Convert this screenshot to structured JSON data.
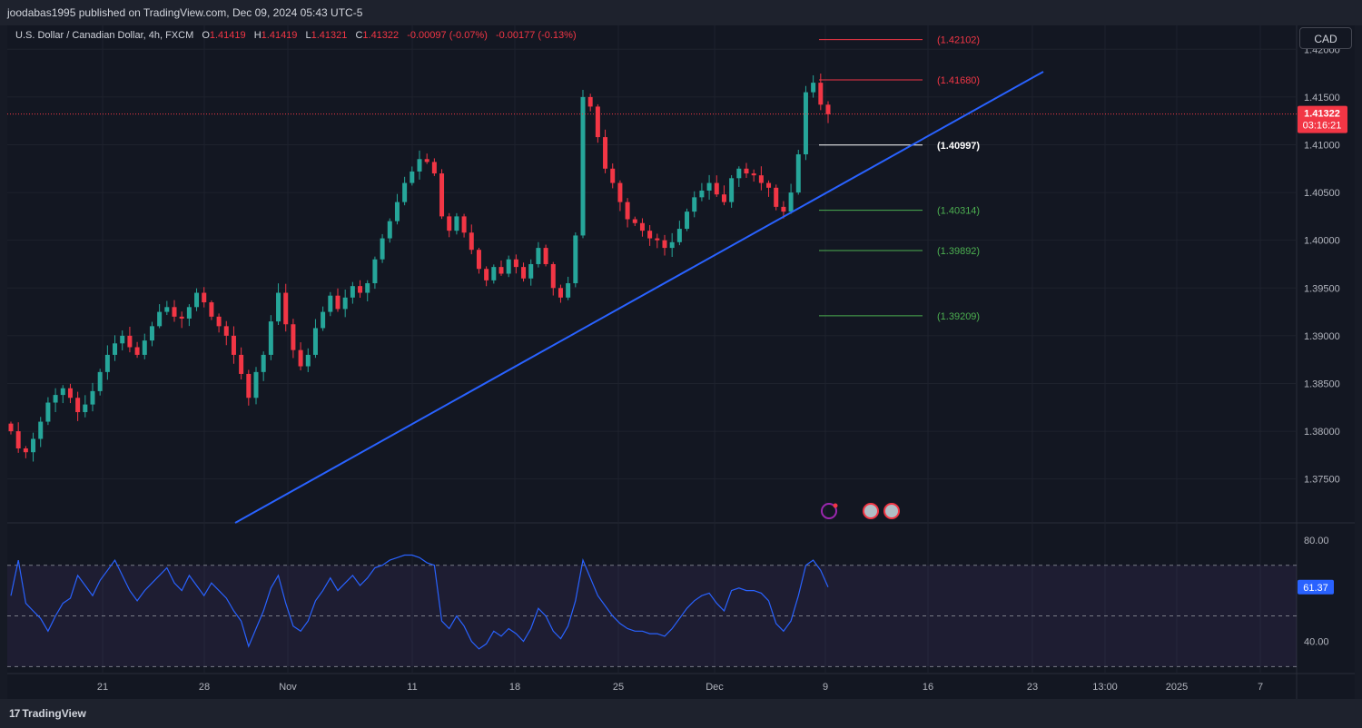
{
  "header": {
    "publisher_text": "joodabas1995 published on TradingView.com, Dec 09, 2024 05:43 UTC-5"
  },
  "legend": {
    "symbol": "U.S. Dollar / Canadian Dollar, 4h, FXCM",
    "open_label": "O",
    "open": "1.41419",
    "high_label": "H",
    "high": "1.41419",
    "low_label": "L",
    "low": "1.41321",
    "close_label": "C",
    "close": "1.41322",
    "change": "-0.00097 (-0.07%)",
    "change2": "-0.00177 (-0.13%)"
  },
  "currency_button": "CAD",
  "footer": {
    "brand": "TradingView"
  },
  "colors": {
    "background": "#131722",
    "up": "#26a69a",
    "down": "#f23645",
    "trendline": "#2962ff",
    "rsi_line": "#2962ff",
    "rsi_band": "#7e57c2"
  },
  "chart_data": [
    {
      "type": "candlestick",
      "title": "U.S. Dollar / Canadian Dollar, 4h, FXCM",
      "y_axis_ticks": [
        "1.42000",
        "1.41500",
        "1.41000",
        "1.40500",
        "1.40000",
        "1.39500",
        "1.39000",
        "1.38500",
        "1.38000",
        "1.37500"
      ],
      "ylim": [
        1.3705,
        1.4225
      ],
      "x_axis_ticks": [
        "21",
        "28",
        "Nov",
        "11",
        "18",
        "25",
        "Dec",
        "9",
        "16",
        "23",
        "13:00",
        "2025",
        "7"
      ],
      "price_labels": [
        {
          "text": "(1.42102)",
          "value": 1.42102,
          "color": "#f23645"
        },
        {
          "text": "(1.41680)",
          "value": 1.4168,
          "color": "#f23645"
        },
        {
          "text": "(1.40997)",
          "value": 1.40997,
          "color": "#ffffff"
        },
        {
          "text": "(1.40314)",
          "value": 1.40314,
          "color": "#4caf50"
        },
        {
          "text": "(1.39892)",
          "value": 1.39892,
          "color": "#4caf50"
        },
        {
          "text": "(1.39209)",
          "value": 1.39209,
          "color": "#4caf50"
        }
      ],
      "current_price": {
        "value": "1.41322",
        "countdown": "03:16:21"
      },
      "trendline": {
        "from": {
          "date": "Oct 30",
          "price": 1.3665
        },
        "to": {
          "date": "Dec 23",
          "price": 1.418
        }
      },
      "close_series": [
        1.38,
        1.3782,
        1.3778,
        1.3792,
        1.381,
        1.383,
        1.3838,
        1.3845,
        1.3835,
        1.382,
        1.3828,
        1.3842,
        1.3862,
        1.388,
        1.3892,
        1.39,
        1.3888,
        1.388,
        1.3895,
        1.391,
        1.3925,
        1.393,
        1.392,
        1.3918,
        1.393,
        1.3945,
        1.3935,
        1.392,
        1.391,
        1.39,
        1.388,
        1.386,
        1.3835,
        1.3862,
        1.388,
        1.3915,
        1.3945,
        1.3912,
        1.3885,
        1.3868,
        1.388,
        1.3908,
        1.3925,
        1.3942,
        1.3928,
        1.394,
        1.3952,
        1.3945,
        1.3955,
        1.398,
        1.4002,
        1.402,
        1.404,
        1.406,
        1.4072,
        1.4085,
        1.4082,
        1.407,
        1.4025,
        1.401,
        1.4025,
        1.4008,
        1.399,
        1.397,
        1.3958,
        1.3972,
        1.3965,
        1.398,
        1.3972,
        1.396,
        1.3975,
        1.3992,
        1.3975,
        1.395,
        1.394,
        1.3955,
        1.4005,
        1.415,
        1.414,
        1.4108,
        1.4075,
        1.406,
        1.404,
        1.4022,
        1.4018,
        1.401,
        1.4002,
        1.4,
        1.3992,
        1.3998,
        1.4012,
        1.403,
        1.4045,
        1.4052,
        1.406,
        1.4048,
        1.404,
        1.4065,
        1.4075,
        1.407,
        1.4068,
        1.406,
        1.4055,
        1.4035,
        1.403,
        1.405,
        1.409,
        1.4155,
        1.4165,
        1.4142,
        1.4132
      ]
    },
    {
      "type": "line",
      "title": "RSI",
      "y_axis_ticks": [
        "80.00",
        "40.00"
      ],
      "ylim": [
        28,
        86
      ],
      "bands": {
        "upper": 70,
        "middle": 50,
        "lower": 30
      },
      "current_value": "61.37",
      "values": [
        58,
        72,
        55,
        52,
        49,
        44,
        50,
        55,
        57,
        66,
        62,
        58,
        64,
        68,
        72,
        66,
        60,
        56,
        60,
        63,
        66,
        69,
        63,
        60,
        66,
        62,
        58,
        63,
        60,
        57,
        52,
        48,
        38,
        45,
        52,
        61,
        66,
        55,
        46,
        44,
        48,
        56,
        60,
        65,
        60,
        63,
        66,
        62,
        65,
        69,
        70,
        72,
        73,
        74,
        74,
        73,
        71,
        70,
        48,
        45,
        50,
        46,
        40,
        37,
        39,
        44,
        42,
        45,
        43,
        40,
        45,
        53,
        50,
        44,
        41,
        46,
        56,
        72,
        65,
        58,
        54,
        50,
        47,
        45,
        44,
        44,
        43,
        43,
        42,
        45,
        49,
        53,
        56,
        58,
        59,
        55,
        52,
        60,
        61,
        60,
        60,
        59,
        56,
        47,
        44,
        48,
        58,
        70,
        72,
        68,
        61.37
      ]
    }
  ]
}
